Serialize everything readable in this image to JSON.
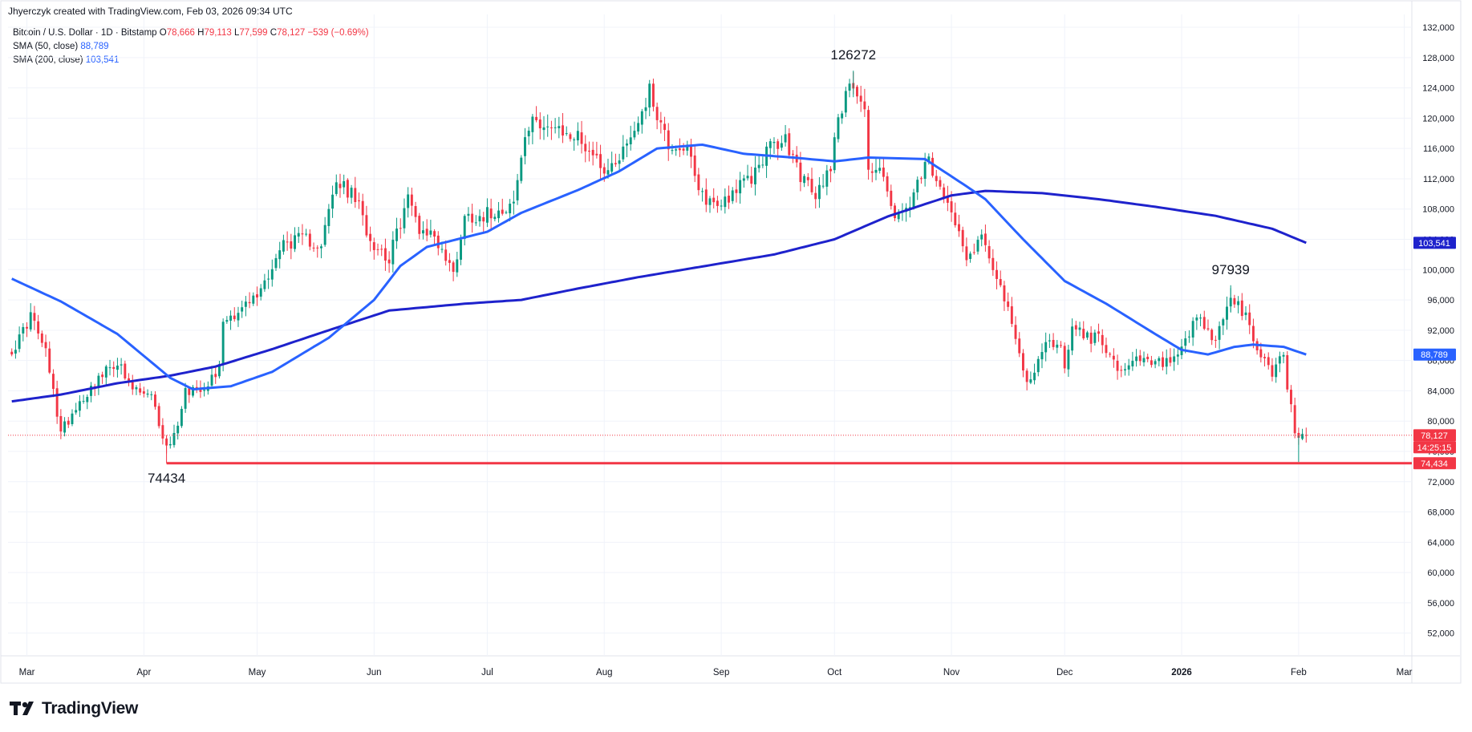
{
  "header": {
    "creator_line": "Jhyerczyk created with TradingView.com, Feb 03, 2026 09:34 UTC"
  },
  "legend": {
    "symbol": "Bitcoin / U.S. Dollar · 1D · Bitstamp",
    "open_label": "O",
    "open": "78,666",
    "high_label": "H",
    "high": "79,113",
    "low_label": "L",
    "low": "77,599",
    "close_label": "C",
    "close": "78,127",
    "change": "−539 (−0.69%)",
    "sma50_label": "SMA (50, close)",
    "sma50_value": "88,789",
    "sma200_label": "SMA (200, close)",
    "sma200_value": "103,541"
  },
  "brand": {
    "name": "TradingView"
  },
  "chart_data": {
    "type": "candlestick",
    "x_tick_labels": [
      "Mar",
      "Apr",
      "May",
      "Jun",
      "Jul",
      "Aug",
      "Sep",
      "Oct",
      "Nov",
      "Dec",
      "2026",
      "Feb",
      "Mar"
    ],
    "y_tick_labels": [
      "132,000",
      "128,000",
      "124,000",
      "120,000",
      "116,000",
      "112,000",
      "108,000",
      "104,000",
      "100,000",
      "96,000",
      "92,000",
      "88,000",
      "84,000",
      "80,000",
      "76,000",
      "72,000",
      "68,000",
      "64,000",
      "60,000",
      "56,000",
      "52,000"
    ],
    "y_ticks": [
      132000,
      128000,
      124000,
      120000,
      116000,
      112000,
      108000,
      104000,
      100000,
      96000,
      92000,
      88000,
      84000,
      80000,
      76000,
      72000,
      68000,
      64000,
      60000,
      56000,
      52000
    ],
    "ylim": [
      49000,
      133700
    ],
    "price_scale": "right",
    "grid": true,
    "candle_colors": {
      "up": "#089981",
      "down": "#f23645"
    },
    "series_colors": {
      "sma50": "#2962ff",
      "sma200": "#1e22cc"
    },
    "price_anchors": [
      [
        "2025-02-25",
        88800
      ],
      [
        "2025-03-02",
        94000
      ],
      [
        "2025-03-06",
        89000
      ],
      [
        "2025-03-10",
        78500
      ],
      [
        "2025-03-14",
        82000
      ],
      [
        "2025-03-19",
        85000
      ],
      [
        "2025-03-25",
        88000
      ],
      [
        "2025-03-28",
        84500
      ],
      [
        "2025-04-03",
        83000
      ],
      [
        "2025-04-07",
        76500
      ],
      [
        "2025-04-09",
        78000
      ],
      [
        "2025-04-12",
        84000
      ],
      [
        "2025-04-17",
        84700
      ],
      [
        "2025-04-21",
        87000
      ],
      [
        "2025-04-22",
        93500
      ],
      [
        "2025-04-26",
        94500
      ],
      [
        "2025-05-01",
        96500
      ],
      [
        "2025-05-08",
        103500
      ],
      [
        "2025-05-13",
        104000
      ],
      [
        "2025-05-18",
        103500
      ],
      [
        "2025-05-22",
        111500
      ],
      [
        "2025-05-27",
        109500
      ],
      [
        "2025-05-31",
        104000
      ],
      [
        "2025-06-05",
        101500
      ],
      [
        "2025-06-10",
        109500
      ],
      [
        "2025-06-13",
        105500
      ],
      [
        "2025-06-17",
        104500
      ],
      [
        "2025-06-22",
        99500
      ],
      [
        "2025-06-25",
        107000
      ],
      [
        "2025-06-30",
        107200
      ],
      [
        "2025-07-08",
        108800
      ],
      [
        "2025-07-11",
        117500
      ],
      [
        "2025-07-14",
        120000
      ],
      [
        "2025-07-20",
        118000
      ],
      [
        "2025-07-25",
        117500
      ],
      [
        "2025-08-02",
        113000
      ],
      [
        "2025-08-08",
        117500
      ],
      [
        "2025-08-13",
        123500
      ],
      [
        "2025-08-18",
        116500
      ],
      [
        "2025-08-23",
        116000
      ],
      [
        "2025-08-26",
        110000
      ],
      [
        "2025-08-31",
        108500
      ],
      [
        "2025-09-05",
        110700
      ],
      [
        "2025-09-09",
        112000
      ],
      [
        "2025-09-13",
        115800
      ],
      [
        "2025-09-18",
        117000
      ],
      [
        "2025-09-22",
        112500
      ],
      [
        "2025-09-26",
        109500
      ],
      [
        "2025-09-30",
        114000
      ],
      [
        "2025-10-02",
        120500
      ],
      [
        "2025-10-06",
        124800
      ],
      [
        "2025-10-09",
        121500
      ],
      [
        "2025-10-10",
        113000
      ],
      [
        "2025-10-14",
        113000
      ],
      [
        "2025-10-17",
        106500
      ],
      [
        "2025-10-21",
        108500
      ],
      [
        "2025-10-26",
        114500
      ],
      [
        "2025-10-29",
        110000
      ],
      [
        "2025-11-03",
        106000
      ],
      [
        "2025-11-05",
        101500
      ],
      [
        "2025-11-09",
        104500
      ],
      [
        "2025-11-13",
        99500
      ],
      [
        "2025-11-17",
        92500
      ],
      [
        "2025-11-21",
        85000
      ],
      [
        "2025-11-26",
        90000
      ],
      [
        "2025-11-30",
        90500
      ],
      [
        "2025-12-01",
        86500
      ],
      [
        "2025-12-03",
        93000
      ],
      [
        "2025-12-08",
        90500
      ],
      [
        "2025-12-10",
        92000
      ],
      [
        "2025-12-13",
        88500
      ],
      [
        "2025-12-16",
        86000
      ],
      [
        "2025-12-20",
        88000
      ],
      [
        "2025-12-25",
        87500
      ],
      [
        "2025-12-31",
        88000
      ],
      [
        "2026-01-05",
        93500
      ],
      [
        "2026-01-10",
        90500
      ],
      [
        "2026-01-14",
        96500
      ],
      [
        "2026-01-18",
        93500
      ],
      [
        "2026-01-21",
        89500
      ],
      [
        "2026-01-25",
        86500
      ],
      [
        "2026-01-28",
        89000
      ],
      [
        "2026-01-29",
        84500
      ],
      [
        "2026-01-30",
        82500
      ],
      [
        "2026-01-31",
        78500
      ],
      [
        "2026-02-01",
        77800
      ],
      [
        "2026-02-03",
        78127
      ]
    ],
    "sma50_anchors": [
      [
        "2025-02-25",
        98800
      ],
      [
        "2025-03-10",
        95800
      ],
      [
        "2025-03-25",
        91500
      ],
      [
        "2025-04-08",
        85700
      ],
      [
        "2025-04-14",
        84200
      ],
      [
        "2025-04-24",
        84600
      ],
      [
        "2025-05-05",
        86500
      ],
      [
        "2025-05-20",
        91000
      ],
      [
        "2025-06-01",
        96000
      ],
      [
        "2025-06-08",
        100500
      ],
      [
        "2025-06-15",
        103000
      ],
      [
        "2025-07-01",
        105000
      ],
      [
        "2025-07-10",
        107500
      ],
      [
        "2025-07-25",
        110500
      ],
      [
        "2025-08-05",
        113000
      ],
      [
        "2025-08-15",
        116000
      ],
      [
        "2025-08-27",
        116500
      ],
      [
        "2025-09-07",
        115300
      ],
      [
        "2025-09-20",
        114800
      ],
      [
        "2025-10-01",
        114300
      ],
      [
        "2025-10-10",
        114800
      ],
      [
        "2025-10-25",
        114600
      ],
      [
        "2025-11-05",
        111000
      ],
      [
        "2025-11-10",
        109300
      ],
      [
        "2025-11-20",
        104000
      ],
      [
        "2025-12-01",
        98500
      ],
      [
        "2025-12-12",
        95500
      ],
      [
        "2025-12-25",
        91500
      ],
      [
        "2026-01-01",
        89400
      ],
      [
        "2026-01-08",
        88800
      ],
      [
        "2026-01-15",
        89800
      ],
      [
        "2026-01-20",
        90100
      ],
      [
        "2026-01-28",
        89800
      ],
      [
        "2026-02-03",
        88789
      ]
    ],
    "sma200_anchors": [
      [
        "2025-02-25",
        82600
      ],
      [
        "2025-03-10",
        83500
      ],
      [
        "2025-03-25",
        85000
      ],
      [
        "2025-04-08",
        86000
      ],
      [
        "2025-04-20",
        87200
      ],
      [
        "2025-05-05",
        89500
      ],
      [
        "2025-05-20",
        92000
      ],
      [
        "2025-06-05",
        94600
      ],
      [
        "2025-06-25",
        95500
      ],
      [
        "2025-07-10",
        96000
      ],
      [
        "2025-07-25",
        97500
      ],
      [
        "2025-08-10",
        99000
      ],
      [
        "2025-08-28",
        100500
      ],
      [
        "2025-09-15",
        102000
      ],
      [
        "2025-10-01",
        104000
      ],
      [
        "2025-10-15",
        107000
      ],
      [
        "2025-11-01",
        109800
      ],
      [
        "2025-11-10",
        110400
      ],
      [
        "2025-11-25",
        110100
      ],
      [
        "2025-12-10",
        109300
      ],
      [
        "2025-12-25",
        108300
      ],
      [
        "2026-01-10",
        107100
      ],
      [
        "2026-01-25",
        105400
      ],
      [
        "2026-02-03",
        103541
      ]
    ],
    "horizontal_lines": [
      {
        "value": 74434,
        "from": "2025-04-07",
        "color": "#f23645"
      }
    ],
    "current_price_line": {
      "value": 78127
    },
    "annotations": [
      {
        "text": "126272",
        "date": "2025-10-06",
        "value": 126272,
        "placement": "above"
      },
      {
        "text": "97939",
        "date": "2026-01-14",
        "value": 97939,
        "placement": "above"
      },
      {
        "text": "74434",
        "date": "2025-04-07",
        "value": 74434,
        "placement": "below"
      }
    ],
    "price_labels": [
      {
        "text": "103,541",
        "value": 103541,
        "color": "#1e22cc"
      },
      {
        "text": "88,789",
        "value": 88789,
        "color": "#2962ff"
      },
      {
        "text": "78,127",
        "value": 78127,
        "color": "#f23645"
      },
      {
        "text": "14:25:15",
        "value": 78127,
        "color": "#f23645",
        "role": "countdown"
      },
      {
        "text": "74,434",
        "value": 74434,
        "color": "#f23645"
      }
    ]
  }
}
